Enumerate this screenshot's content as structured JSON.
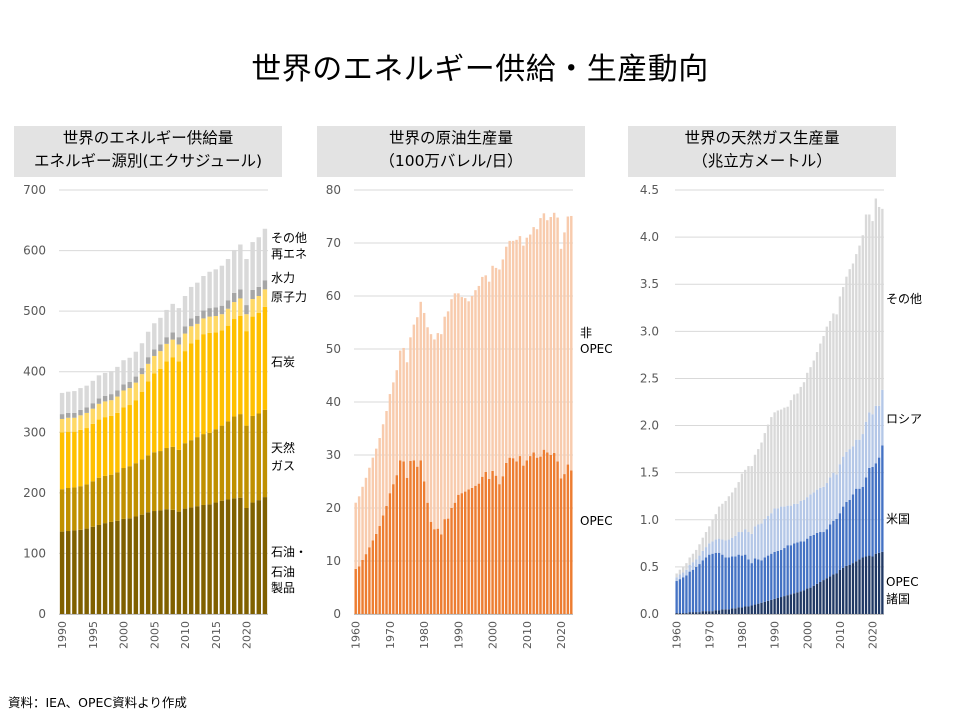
{
  "title": "世界のエネルギー供給・生産動向",
  "source": "資料：IEA、OPEC資料より作成",
  "panels": [
    {
      "title_line1": "世界のエネルギー供給量",
      "title_line2": "エネルギー源別(エクサジュール)"
    },
    {
      "title_line1": "世界の原油生産量",
      "title_line2": "（100万バレル/日）"
    },
    {
      "title_line1": "世界の天然ガス生産量",
      "title_line2": "（兆立方メートル）"
    }
  ],
  "chart_data": [
    {
      "type": "bar",
      "stacked": true,
      "title": "世界のエネルギー供給量 エネルギー源別(エクサジュール)",
      "x": [
        1990,
        1991,
        1992,
        1993,
        1994,
        1995,
        1996,
        1997,
        1998,
        1999,
        2000,
        2001,
        2002,
        2003,
        2004,
        2005,
        2006,
        2007,
        2008,
        2009,
        2010,
        2011,
        2012,
        2013,
        2014,
        2015,
        2016,
        2017,
        2018,
        2019,
        2020,
        2021,
        2022,
        2023
      ],
      "xticks": [
        1990,
        1995,
        2000,
        2005,
        2010,
        2015,
        2020
      ],
      "ylim": [
        0,
        700
      ],
      "yticks": [
        0,
        100,
        200,
        300,
        400,
        500,
        600,
        700
      ],
      "grid": true,
      "colors": {
        "oil": "#7f6000",
        "gas": "#bf9000",
        "coal": "#ffc000",
        "nuclear": "#ffd966",
        "hydro": "#a6a6a6",
        "other": "#d9d9d9"
      },
      "series": [
        {
          "key": "oil",
          "name": "石油・\n石油\n製品",
          "values": [
            136,
            137,
            138,
            139,
            141,
            144,
            147,
            150,
            152,
            154,
            157,
            158,
            161,
            164,
            168,
            170,
            171,
            173,
            172,
            169,
            174,
            176,
            178,
            180,
            181,
            184,
            187,
            189,
            191,
            192,
            175,
            184,
            188,
            193
          ]
        },
        {
          "key": "gas",
          "name": "天然\nガス",
          "values": [
            70,
            71,
            71,
            72,
            73,
            75,
            78,
            78,
            78,
            80,
            84,
            86,
            88,
            91,
            94,
            97,
            98,
            101,
            104,
            102,
            108,
            111,
            114,
            117,
            118,
            121,
            124,
            129,
            135,
            138,
            136,
            143,
            143,
            144
          ]
        },
        {
          "key": "coal",
          "name": "石炭",
          "values": [
            94,
            93,
            92,
            93,
            93,
            95,
            96,
            97,
            97,
            98,
            100,
            101,
            104,
            112,
            122,
            130,
            136,
            143,
            148,
            146,
            152,
            160,
            161,
            165,
            165,
            160,
            157,
            158,
            161,
            162,
            156,
            164,
            166,
            170
          ]
        },
        {
          "key": "nuclear",
          "name": "原子力",
          "values": [
            22,
            23,
            23,
            24,
            25,
            25,
            26,
            26,
            26,
            27,
            28,
            28,
            29,
            29,
            29,
            29,
            29,
            29,
            29,
            28,
            29,
            28,
            26,
            26,
            27,
            27,
            27,
            28,
            28,
            29,
            28,
            29,
            28,
            29
          ]
        },
        {
          "key": "hydro",
          "name": "水力",
          "values": [
            8,
            8,
            8,
            9,
            9,
            9,
            9,
            9,
            10,
            10,
            10,
            10,
            10,
            10,
            11,
            11,
            11,
            11,
            12,
            12,
            12,
            13,
            13,
            13,
            14,
            14,
            14,
            14,
            15,
            15,
            15,
            15,
            15,
            15
          ]
        },
        {
          "key": "other",
          "name": "その他\n再エネ",
          "values": [
            35,
            35,
            36,
            36,
            36,
            37,
            38,
            38,
            38,
            39,
            40,
            40,
            41,
            41,
            42,
            43,
            44,
            45,
            47,
            48,
            50,
            52,
            55,
            57,
            60,
            63,
            66,
            68,
            71,
            74,
            76,
            79,
            82,
            85
          ]
        }
      ]
    },
    {
      "type": "bar",
      "stacked": true,
      "title": "世界の原油生産量 （100万バレル/日）",
      "x": [
        1960,
        1961,
        1962,
        1963,
        1964,
        1965,
        1966,
        1967,
        1968,
        1969,
        1970,
        1971,
        1972,
        1973,
        1974,
        1975,
        1976,
        1977,
        1978,
        1979,
        1980,
        1981,
        1982,
        1983,
        1984,
        1985,
        1986,
        1987,
        1988,
        1989,
        1990,
        1991,
        1992,
        1993,
        1994,
        1995,
        1996,
        1997,
        1998,
        1999,
        2000,
        2001,
        2002,
        2003,
        2004,
        2005,
        2006,
        2007,
        2008,
        2009,
        2010,
        2011,
        2012,
        2013,
        2014,
        2015,
        2016,
        2017,
        2018,
        2019,
        2020,
        2021,
        2022,
        2023
      ],
      "xticks": [
        1960,
        1970,
        1980,
        1990,
        2000,
        2010,
        2020
      ],
      "ylim": [
        0,
        80
      ],
      "yticks": [
        0,
        10,
        20,
        30,
        40,
        50,
        60,
        70,
        80
      ],
      "grid": true,
      "colors": {
        "opec": "#ed7d31",
        "non_opec": "#f8cbad"
      },
      "series": [
        {
          "key": "opec",
          "name": "OPEC",
          "values": [
            8.5,
            9.0,
            10.2,
            11.3,
            12.6,
            13.9,
            15.1,
            16.6,
            18.6,
            20.4,
            22.8,
            24.5,
            26.2,
            29.0,
            28.8,
            25.7,
            28.9,
            29.0,
            27.8,
            29.0,
            25.0,
            21.0,
            17.4,
            16.0,
            16.1,
            15.0,
            17.9,
            18.0,
            20.0,
            21.0,
            22.5,
            22.8,
            23.1,
            23.5,
            23.8,
            24.2,
            24.6,
            25.9,
            26.8,
            25.5,
            27.0,
            26.1,
            24.5,
            26.0,
            28.5,
            29.5,
            29.4,
            28.8,
            29.8,
            28.0,
            29.0,
            29.8,
            30.5,
            29.5,
            29.7,
            31.0,
            30.5,
            30.0,
            30.4,
            28.8,
            25.6,
            26.4,
            28.2,
            27.1
          ]
        },
        {
          "key": "non_opec",
          "name": "非\nOPEC",
          "values": [
            12.5,
            13.2,
            13.8,
            14.4,
            15.0,
            15.6,
            16.1,
            16.6,
            17.2,
            17.9,
            18.7,
            19.2,
            19.8,
            20.7,
            21.4,
            21.8,
            23.3,
            25.6,
            28.2,
            29.9,
            31.8,
            33.1,
            35.4,
            35.8,
            36.9,
            37.8,
            38.2,
            39.1,
            39.4,
            39.5,
            38.0,
            37.0,
            36.5,
            35.5,
            36.2,
            36.9,
            37.3,
            37.7,
            37.1,
            37.2,
            38.7,
            39.2,
            40.5,
            40.9,
            40.8,
            40.9,
            41.0,
            41.8,
            41.5,
            41.5,
            42.0,
            41.8,
            42.5,
            43.1,
            45.0,
            44.6,
            43.8,
            44.9,
            45.3,
            46.0,
            43.3,
            45.6,
            46.8,
            48.0
          ]
        }
      ]
    },
    {
      "type": "bar",
      "stacked": true,
      "title": "世界の天然ガス生産量 （兆立方メートル）",
      "x": [
        1960,
        1961,
        1962,
        1963,
        1964,
        1965,
        1966,
        1967,
        1968,
        1969,
        1970,
        1971,
        1972,
        1973,
        1974,
        1975,
        1976,
        1977,
        1978,
        1979,
        1980,
        1981,
        1982,
        1983,
        1984,
        1985,
        1986,
        1987,
        1988,
        1989,
        1990,
        1991,
        1992,
        1993,
        1994,
        1995,
        1996,
        1997,
        1998,
        1999,
        2000,
        2001,
        2002,
        2003,
        2004,
        2005,
        2006,
        2007,
        2008,
        2009,
        2010,
        2011,
        2012,
        2013,
        2014,
        2015,
        2016,
        2017,
        2018,
        2019,
        2020,
        2021,
        2022,
        2023
      ],
      "xticks": [
        1960,
        1970,
        1980,
        1990,
        2000,
        2010,
        2020
      ],
      "ylim": [
        0,
        4.5
      ],
      "yticks": [
        0.0,
        0.5,
        1.0,
        1.5,
        2.0,
        2.5,
        3.0,
        3.5,
        4.0,
        4.5
      ],
      "grid": true,
      "colors": {
        "opec": "#203864",
        "us": "#4472c4",
        "russia": "#b4c7e7",
        "other": "#d9d9d9"
      },
      "series": [
        {
          "key": "opec",
          "name": "OPEC\n諸国",
          "values": [
            0.01,
            0.01,
            0.01,
            0.01,
            0.02,
            0.02,
            0.02,
            0.02,
            0.03,
            0.03,
            0.03,
            0.03,
            0.04,
            0.04,
            0.05,
            0.05,
            0.05,
            0.06,
            0.06,
            0.07,
            0.07,
            0.08,
            0.08,
            0.09,
            0.1,
            0.11,
            0.12,
            0.13,
            0.14,
            0.15,
            0.16,
            0.17,
            0.18,
            0.19,
            0.2,
            0.21,
            0.22,
            0.23,
            0.24,
            0.25,
            0.27,
            0.28,
            0.3,
            0.32,
            0.34,
            0.36,
            0.38,
            0.4,
            0.42,
            0.43,
            0.47,
            0.49,
            0.51,
            0.52,
            0.54,
            0.56,
            0.58,
            0.6,
            0.61,
            0.62,
            0.61,
            0.64,
            0.65,
            0.66
          ]
        },
        {
          "key": "us",
          "name": "米国",
          "values": [
            0.34,
            0.36,
            0.38,
            0.4,
            0.43,
            0.45,
            0.48,
            0.51,
            0.54,
            0.57,
            0.6,
            0.61,
            0.61,
            0.61,
            0.58,
            0.55,
            0.55,
            0.55,
            0.55,
            0.56,
            0.55,
            0.55,
            0.5,
            0.45,
            0.49,
            0.47,
            0.45,
            0.47,
            0.48,
            0.49,
            0.5,
            0.5,
            0.5,
            0.51,
            0.53,
            0.52,
            0.53,
            0.53,
            0.53,
            0.52,
            0.53,
            0.55,
            0.54,
            0.54,
            0.53,
            0.51,
            0.52,
            0.55,
            0.57,
            0.58,
            0.6,
            0.65,
            0.68,
            0.69,
            0.73,
            0.77,
            0.75,
            0.75,
            0.84,
            0.93,
            0.95,
            0.96,
            1.01,
            1.13
          ]
        },
        {
          "key": "russia",
          "name": "ロシア",
          "values": [
            0.04,
            0.05,
            0.05,
            0.06,
            0.07,
            0.08,
            0.08,
            0.09,
            0.1,
            0.11,
            0.12,
            0.13,
            0.14,
            0.15,
            0.16,
            0.18,
            0.19,
            0.2,
            0.22,
            0.24,
            0.25,
            0.27,
            0.29,
            0.31,
            0.34,
            0.37,
            0.39,
            0.41,
            0.42,
            0.43,
            0.46,
            0.45,
            0.46,
            0.44,
            0.42,
            0.42,
            0.42,
            0.41,
            0.43,
            0.44,
            0.44,
            0.44,
            0.45,
            0.46,
            0.47,
            0.48,
            0.49,
            0.5,
            0.51,
            0.47,
            0.52,
            0.53,
            0.53,
            0.54,
            0.51,
            0.52,
            0.52,
            0.56,
            0.59,
            0.59,
            0.56,
            0.61,
            0.55,
            0.59
          ]
        },
        {
          "key": "other",
          "name": "その他",
          "values": [
            0.04,
            0.05,
            0.06,
            0.07,
            0.08,
            0.09,
            0.1,
            0.12,
            0.14,
            0.16,
            0.18,
            0.23,
            0.27,
            0.34,
            0.38,
            0.42,
            0.46,
            0.48,
            0.51,
            0.53,
            0.62,
            0.63,
            0.7,
            0.72,
            0.76,
            0.8,
            0.86,
            0.91,
            0.97,
            1.02,
            1.02,
            1.04,
            1.03,
            1.05,
            1.05,
            1.12,
            1.16,
            1.17,
            1.21,
            1.25,
            1.32,
            1.35,
            1.4,
            1.46,
            1.53,
            1.6,
            1.66,
            1.66,
            1.69,
            1.7,
            1.78,
            1.8,
            1.86,
            1.91,
            1.94,
            1.97,
            2.06,
            2.11,
            2.2,
            2.1,
            2.05,
            2.2,
            2.11,
            1.92
          ]
        }
      ]
    }
  ]
}
